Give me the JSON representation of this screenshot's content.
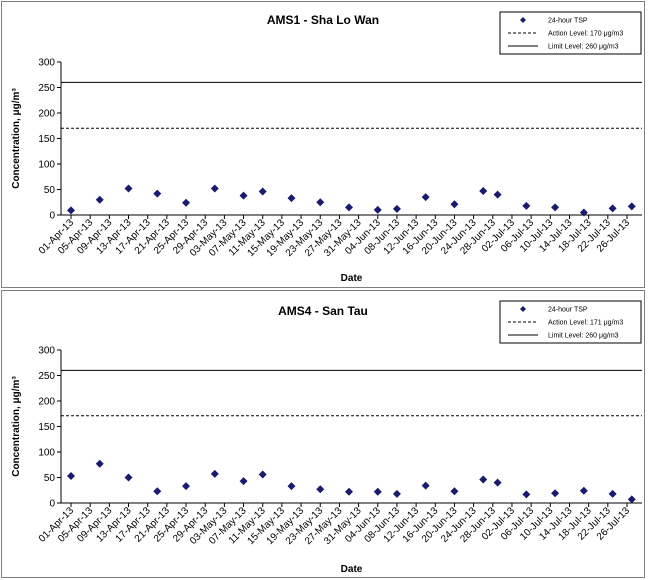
{
  "chart_data": [
    {
      "type": "scatter",
      "title": "AMS1 - Sha Lo Wan",
      "xlabel": "Date",
      "ylabel": "Concentration, μg/m³",
      "ylim": [
        0,
        300
      ],
      "yticks": [
        0,
        50,
        100,
        150,
        200,
        250,
        300
      ],
      "xticks": [
        "01-Apr-13",
        "05-Apr-13",
        "09-Apr-13",
        "13-Apr-13",
        "17-Apr-13",
        "21-Apr-13",
        "25-Apr-13",
        "29-Apr-13",
        "03-May-13",
        "07-May-13",
        "11-May-13",
        "15-May-13",
        "19-May-13",
        "23-May-13",
        "27-May-13",
        "31-May-13",
        "04-Jun-13",
        "08-Jun-13",
        "12-Jun-13",
        "16-Jun-13",
        "20-Jun-13",
        "24-Jun-13",
        "28-Jun-13",
        "02-Jul-13",
        "06-Jul-13",
        "10-Jul-13",
        "14-Jul-13",
        "18-Jul-13",
        "22-Jul-13",
        "26-Jul-13"
      ],
      "grid": false,
      "legend_position": "top-right",
      "series": [
        {
          "name": "24-hour TSP",
          "kind": "scatter",
          "color": "#1a1a6e",
          "points": [
            {
              "x": "01-Apr-13",
              "y": 9
            },
            {
              "x": "07-Apr-13",
              "y": 30
            },
            {
              "x": "13-Apr-13",
              "y": 52
            },
            {
              "x": "19-Apr-13",
              "y": 42
            },
            {
              "x": "25-Apr-13",
              "y": 24
            },
            {
              "x": "01-May-13",
              "y": 52
            },
            {
              "x": "07-May-13",
              "y": 38
            },
            {
              "x": "11-May-13",
              "y": 46
            },
            {
              "x": "17-May-13",
              "y": 33
            },
            {
              "x": "23-May-13",
              "y": 25
            },
            {
              "x": "29-May-13",
              "y": 15
            },
            {
              "x": "04-Jun-13",
              "y": 10
            },
            {
              "x": "08-Jun-13",
              "y": 12
            },
            {
              "x": "14-Jun-13",
              "y": 35
            },
            {
              "x": "20-Jun-13",
              "y": 21
            },
            {
              "x": "26-Jun-13",
              "y": 47
            },
            {
              "x": "29-Jun-13",
              "y": 40
            },
            {
              "x": "05-Jul-13",
              "y": 18
            },
            {
              "x": "11-Jul-13",
              "y": 15
            },
            {
              "x": "17-Jul-13",
              "y": 5
            },
            {
              "x": "23-Jul-13",
              "y": 13
            },
            {
              "x": "27-Jul-13",
              "y": 17
            }
          ]
        },
        {
          "name": "Action Level: 170 μg/m3",
          "kind": "hline",
          "y": 170,
          "style": "dashed",
          "color": "#000000"
        },
        {
          "name": "Limit Level: 260 μg/m3",
          "kind": "hline",
          "y": 260,
          "style": "solid",
          "color": "#000000"
        }
      ]
    },
    {
      "type": "scatter",
      "title": "AMS4 - San Tau",
      "xlabel": "Date",
      "ylabel": "Concentration, μg/m³",
      "ylim": [
        0,
        300
      ],
      "yticks": [
        0,
        50,
        100,
        150,
        200,
        250,
        300
      ],
      "xticks": [
        "01-Apr-13",
        "05-Apr-13",
        "09-Apr-13",
        "13-Apr-13",
        "17-Apr-13",
        "21-Apr-13",
        "25-Apr-13",
        "29-Apr-13",
        "03-May-13",
        "07-May-13",
        "11-May-13",
        "15-May-13",
        "19-May-13",
        "23-May-13",
        "27-May-13",
        "31-May-13",
        "04-Jun-13",
        "08-Jun-13",
        "12-Jun-13",
        "16-Jun-13",
        "20-Jun-13",
        "24-Jun-13",
        "28-Jun-13",
        "02-Jul-13",
        "06-Jul-13",
        "10-Jul-13",
        "14-Jul-13",
        "18-Jul-13",
        "22-Jul-13",
        "26-Jul-13"
      ],
      "grid": false,
      "legend_position": "top-right",
      "series": [
        {
          "name": "24-hour TSP",
          "kind": "scatter",
          "color": "#1a1a6e",
          "points": [
            {
              "x": "01-Apr-13",
              "y": 53
            },
            {
              "x": "07-Apr-13",
              "y": 77
            },
            {
              "x": "13-Apr-13",
              "y": 50
            },
            {
              "x": "19-Apr-13",
              "y": 23
            },
            {
              "x": "25-Apr-13",
              "y": 33
            },
            {
              "x": "01-May-13",
              "y": 57
            },
            {
              "x": "07-May-13",
              "y": 43
            },
            {
              "x": "11-May-13",
              "y": 56
            },
            {
              "x": "17-May-13",
              "y": 33
            },
            {
              "x": "23-May-13",
              "y": 27
            },
            {
              "x": "29-May-13",
              "y": 22
            },
            {
              "x": "04-Jun-13",
              "y": 22
            },
            {
              "x": "08-Jun-13",
              "y": 18
            },
            {
              "x": "14-Jun-13",
              "y": 34
            },
            {
              "x": "20-Jun-13",
              "y": 23
            },
            {
              "x": "26-Jun-13",
              "y": 46
            },
            {
              "x": "29-Jun-13",
              "y": 40
            },
            {
              "x": "05-Jul-13",
              "y": 17
            },
            {
              "x": "11-Jul-13",
              "y": 19
            },
            {
              "x": "17-Jul-13",
              "y": 24
            },
            {
              "x": "23-Jul-13",
              "y": 18
            },
            {
              "x": "27-Jul-13",
              "y": 7
            }
          ]
        },
        {
          "name": "Action Level: 171 μg/m3",
          "kind": "hline",
          "y": 171,
          "style": "dashed",
          "color": "#000000"
        },
        {
          "name": "Limit Level: 260 μg/m3",
          "kind": "hline",
          "y": 260,
          "style": "solid",
          "color": "#000000"
        }
      ]
    }
  ]
}
